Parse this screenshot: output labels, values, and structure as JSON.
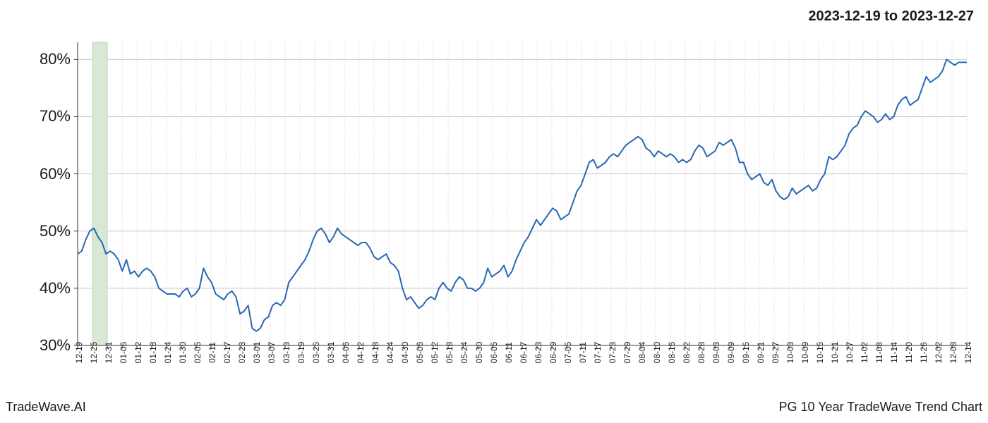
{
  "date_range": "2023-12-19 to 2023-12-27",
  "footer_left": "TradeWave.AI",
  "footer_right": "PG 10 Year TradeWave Trend Chart",
  "chart": {
    "type": "line",
    "background_color": "#ffffff",
    "line_color": "#2967b3",
    "line_width": 2,
    "grid_color_major": "#c8c8c8",
    "grid_color_minor": "#e0e0e0",
    "axis_color": "#333333",
    "highlight_band": {
      "start_index": 1,
      "end_index": 2,
      "fill_color": "#d9e8d4",
      "border_color": "#b8d4b0"
    },
    "y_axis": {
      "min": 30,
      "max": 83,
      "ticks": [
        30,
        40,
        50,
        60,
        70,
        80
      ],
      "tick_format_suffix": "%",
      "label_fontsize": 22
    },
    "x_axis": {
      "labels": [
        "12-19",
        "12-25",
        "12-31",
        "01-06",
        "01-12",
        "01-18",
        "01-24",
        "01-30",
        "02-05",
        "02-11",
        "02-17",
        "02-23",
        "03-01",
        "03-07",
        "03-13",
        "03-19",
        "03-25",
        "03-31",
        "04-06",
        "04-12",
        "04-18",
        "04-24",
        "04-30",
        "05-06",
        "05-12",
        "05-18",
        "05-24",
        "05-30",
        "06-05",
        "06-11",
        "06-17",
        "06-23",
        "06-29",
        "07-05",
        "07-11",
        "07-17",
        "07-23",
        "07-29",
        "08-04",
        "08-10",
        "08-16",
        "08-22",
        "08-28",
        "09-03",
        "09-09",
        "09-15",
        "09-21",
        "09-27",
        "10-03",
        "10-09",
        "10-15",
        "10-21",
        "10-27",
        "11-02",
        "11-08",
        "11-14",
        "11-20",
        "11-26",
        "12-02",
        "12-08",
        "12-14"
      ],
      "label_fontsize": 12,
      "rotation": -90
    },
    "series": {
      "values": [
        46,
        46.5,
        48.5,
        50,
        50.5,
        49,
        48,
        46,
        46.5,
        46,
        45,
        43,
        45,
        42.5,
        43,
        42,
        43,
        43.5,
        43,
        42,
        40,
        39.5,
        39,
        39,
        39,
        38.5,
        39.5,
        40,
        38.5,
        39,
        40,
        43.5,
        42,
        41,
        39,
        38.5,
        38,
        39,
        39.5,
        38.5,
        35.5,
        36,
        37,
        33,
        32.5,
        33,
        34.5,
        35,
        37,
        37.5,
        37,
        38,
        41,
        42,
        43,
        44,
        45,
        46.5,
        48.5,
        50,
        50.5,
        49.5,
        48,
        49,
        50.5,
        49.5,
        49,
        48.5,
        48,
        47.5,
        48,
        48,
        47,
        45.5,
        45,
        45.5,
        46,
        44.5,
        44,
        43,
        40,
        38,
        38.5,
        37.5,
        36.5,
        37,
        38,
        38.5,
        38,
        40,
        41,
        40,
        39.5,
        41,
        42,
        41.5,
        40,
        40,
        39.5,
        40,
        41,
        43.5,
        42,
        42.5,
        43,
        44,
        42,
        43,
        45,
        46.5,
        48,
        49,
        50.5,
        52,
        51,
        52,
        53,
        54,
        53.5,
        52,
        52.5,
        53,
        55,
        57,
        58,
        60,
        62,
        62.5,
        61,
        61.5,
        62,
        63,
        63.5,
        63,
        64,
        65,
        65.5,
        66,
        66.5,
        66,
        64.5,
        64,
        63,
        64,
        63.5,
        63,
        63.5,
        63,
        62,
        62.5,
        62,
        62.5,
        64,
        65,
        64.5,
        63,
        63.5,
        64,
        65.5,
        65,
        65.5,
        66,
        64.5,
        62,
        62,
        60,
        59,
        59.5,
        60,
        58.5,
        58,
        59,
        57,
        56,
        55.5,
        56,
        57.5,
        56.5,
        57,
        57.5,
        58,
        57,
        57.5,
        59,
        60,
        63,
        62.5,
        63,
        64,
        65,
        67,
        68,
        68.5,
        70,
        71,
        70.5,
        70,
        69,
        69.5,
        70.5,
        69.5,
        70,
        72,
        73,
        73.5,
        72,
        72.5,
        73,
        75,
        77,
        76,
        76.5,
        77,
        78,
        80,
        79.5,
        79,
        79.5,
        79.5,
        79.5
      ]
    }
  }
}
